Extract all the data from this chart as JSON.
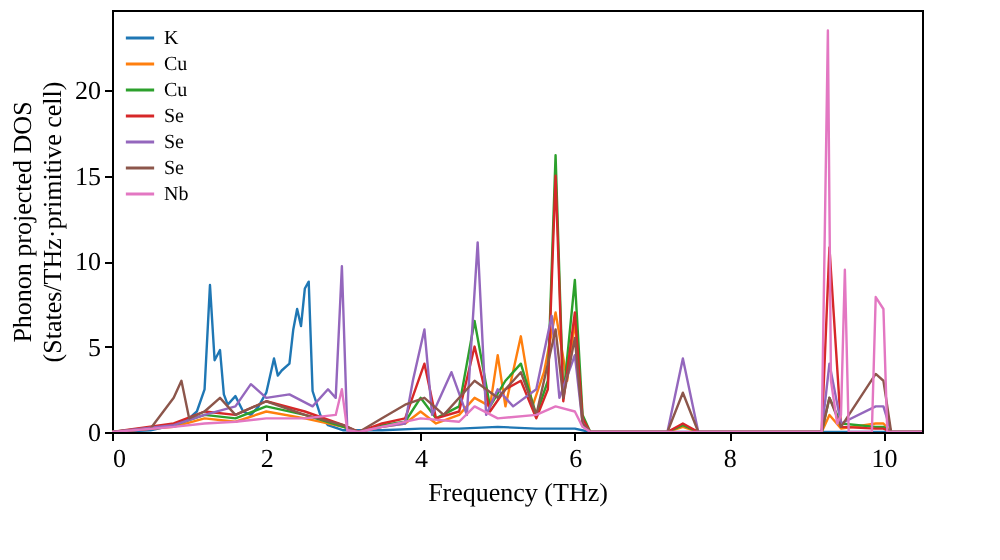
{
  "chart_data": {
    "type": "line",
    "xlabel": "Frequency (THz)",
    "ylabel": "Phonon projected DOS\n(States/THz·primitive cell)",
    "xlim": [
      0,
      10.5
    ],
    "ylim": [
      0,
      24.7
    ],
    "xticks": [
      0,
      2,
      4,
      6,
      8,
      10
    ],
    "yticks": [
      0,
      5,
      10,
      15,
      20
    ],
    "grid": false,
    "legend": "top left",
    "line_style": "solid",
    "marker": "none",
    "series": [
      {
        "name": "K",
        "color": "#1f77b4",
        "x": [
          0,
          0.5,
          0.8,
          1.0,
          1.1,
          1.2,
          1.27,
          1.33,
          1.4,
          1.45,
          1.5,
          1.6,
          1.7,
          1.8,
          1.9,
          2.0,
          2.1,
          2.15,
          2.2,
          2.3,
          2.35,
          2.4,
          2.45,
          2.5,
          2.55,
          2.6,
          2.7,
          2.8,
          3.0,
          3.5,
          4.0,
          4.5,
          5.0,
          5.5,
          6.0,
          6.2,
          10.5
        ],
        "values": [
          0,
          0.1,
          0.4,
          0.8,
          1.2,
          2.5,
          8.6,
          4.2,
          4.8,
          2.2,
          1.6,
          2.1,
          1.2,
          1.0,
          1.5,
          2.3,
          4.3,
          3.3,
          3.6,
          4.0,
          6.0,
          7.2,
          6.2,
          8.4,
          8.8,
          2.4,
          1.0,
          0.4,
          0.1,
          0.1,
          0.2,
          0.2,
          0.3,
          0.2,
          0.2,
          0,
          0
        ]
      },
      {
        "name": "Cu",
        "color": "#ff7f0e",
        "x": [
          0,
          0.8,
          1.2,
          1.6,
          2.0,
          2.5,
          3.0,
          3.2,
          3.5,
          3.8,
          4.0,
          4.2,
          4.5,
          4.7,
          4.9,
          5.0,
          5.1,
          5.3,
          5.45,
          5.6,
          5.75,
          5.9,
          6.0,
          6.1,
          6.2,
          7.2,
          7.4,
          7.6,
          9.2,
          9.3,
          9.45,
          9.9,
          10.0,
          10.1,
          10.5
        ],
        "values": [
          0,
          0.3,
          0.8,
          0.6,
          1.2,
          0.8,
          0.3,
          0,
          0.3,
          0.5,
          1.2,
          0.5,
          1.0,
          2.0,
          1.5,
          4.5,
          1.5,
          5.6,
          1.5,
          3.5,
          7.0,
          3.0,
          6.5,
          0.5,
          0,
          0,
          0.3,
          0,
          0,
          1.0,
          0.2,
          0.5,
          0.5,
          0,
          0
        ]
      },
      {
        "name": "Cu",
        "color": "#2ca02c",
        "x": [
          0,
          0.8,
          1.2,
          1.6,
          2.0,
          2.5,
          3.0,
          3.2,
          3.5,
          3.8,
          4.0,
          4.2,
          4.5,
          4.7,
          4.9,
          5.1,
          5.3,
          5.5,
          5.65,
          5.75,
          5.85,
          6.0,
          6.1,
          6.2,
          7.2,
          7.4,
          7.6,
          9.2,
          9.3,
          9.45,
          9.9,
          10.0,
          10.1,
          10.5
        ],
        "values": [
          0,
          0.4,
          1.0,
          0.8,
          1.5,
          1.0,
          0.3,
          0,
          0.4,
          0.6,
          2.0,
          0.8,
          1.5,
          6.5,
          1.5,
          3.0,
          4.0,
          1.0,
          3.0,
          16.2,
          2.0,
          8.9,
          1.0,
          0,
          0,
          0.4,
          0,
          0,
          2.0,
          0.5,
          0.3,
          0.3,
          0,
          0
        ]
      },
      {
        "name": "Se",
        "color": "#d62728",
        "x": [
          0,
          0.8,
          1.2,
          1.6,
          2.0,
          2.5,
          3.0,
          3.2,
          3.5,
          3.8,
          4.05,
          4.2,
          4.5,
          4.7,
          4.9,
          5.1,
          5.3,
          5.5,
          5.65,
          5.75,
          5.85,
          6.0,
          6.1,
          6.2,
          7.2,
          7.4,
          7.6,
          9.2,
          9.3,
          9.45,
          9.9,
          10.0,
          10.1,
          10.5
        ],
        "values": [
          0,
          0.5,
          1.2,
          1.0,
          1.8,
          1.2,
          0.4,
          0,
          0.5,
          0.8,
          4.0,
          0.8,
          1.2,
          5.0,
          1.2,
          2.5,
          3.0,
          0.8,
          2.5,
          15.0,
          1.8,
          7.0,
          0.8,
          0,
          0,
          0.5,
          0,
          0,
          10.8,
          0.3,
          0.2,
          0.2,
          0,
          0
        ]
      },
      {
        "name": "Se",
        "color": "#9467bd",
        "x": [
          0,
          0.8,
          1.2,
          1.6,
          1.8,
          2.0,
          2.3,
          2.6,
          2.8,
          2.9,
          2.98,
          3.05,
          3.2,
          3.5,
          3.8,
          3.9,
          4.05,
          4.15,
          4.4,
          4.6,
          4.74,
          4.85,
          5.0,
          5.2,
          5.5,
          5.7,
          5.8,
          6.0,
          6.1,
          6.2,
          7.2,
          7.4,
          7.6,
          9.2,
          9.3,
          9.45,
          9.9,
          10.0,
          10.1,
          10.5
        ],
        "values": [
          0,
          0.4,
          1.0,
          1.5,
          2.8,
          2.0,
          2.2,
          1.5,
          2.5,
          2.0,
          9.7,
          0.1,
          0,
          0.3,
          0.5,
          3.0,
          6.0,
          1.0,
          3.5,
          1.0,
          11.1,
          1.0,
          2.5,
          1.5,
          2.5,
          6.8,
          2.0,
          4.5,
          0.5,
          0,
          0,
          4.3,
          0,
          0,
          4.0,
          0.5,
          1.5,
          1.5,
          0,
          0
        ]
      },
      {
        "name": "Se",
        "color": "#8c564b",
        "x": [
          0,
          0.5,
          0.8,
          0.9,
          1.0,
          1.2,
          1.4,
          1.6,
          2.0,
          2.5,
          3.0,
          3.2,
          3.5,
          3.8,
          4.05,
          4.3,
          4.7,
          5.0,
          5.3,
          5.5,
          5.75,
          5.85,
          6.0,
          6.1,
          6.2,
          7.2,
          7.4,
          7.6,
          9.2,
          9.3,
          9.45,
          9.9,
          10.0,
          10.1,
          10.5
        ],
        "values": [
          0,
          0.2,
          2.0,
          3.0,
          0.8,
          1.2,
          2.0,
          1.0,
          1.8,
          1.0,
          0.4,
          0,
          0.8,
          1.6,
          2.0,
          1.0,
          3.0,
          2.0,
          3.5,
          1.0,
          6.0,
          2.0,
          5.5,
          0.5,
          0,
          0,
          2.3,
          0,
          0,
          2.0,
          0.3,
          3.4,
          3.0,
          0,
          0
        ]
      },
      {
        "name": "Nb",
        "color": "#e377c2",
        "x": [
          0,
          0.8,
          1.2,
          1.6,
          2.0,
          2.5,
          2.9,
          2.98,
          3.05,
          3.2,
          3.5,
          4.0,
          4.5,
          4.7,
          5.0,
          5.5,
          5.75,
          6.0,
          6.1,
          6.2,
          9.2,
          9.28,
          9.32,
          9.4,
          9.45,
          9.5,
          9.55,
          9.85,
          9.9,
          10.0,
          10.05,
          10.5
        ],
        "values": [
          0,
          0.3,
          0.5,
          0.6,
          0.8,
          0.8,
          1.0,
          2.5,
          0.1,
          0,
          0.3,
          0.8,
          0.6,
          1.5,
          0.8,
          1.0,
          1.5,
          1.2,
          0.3,
          0,
          0,
          23.5,
          3.0,
          0.5,
          1.0,
          9.5,
          0,
          0,
          7.9,
          7.2,
          0,
          0
        ]
      }
    ]
  }
}
